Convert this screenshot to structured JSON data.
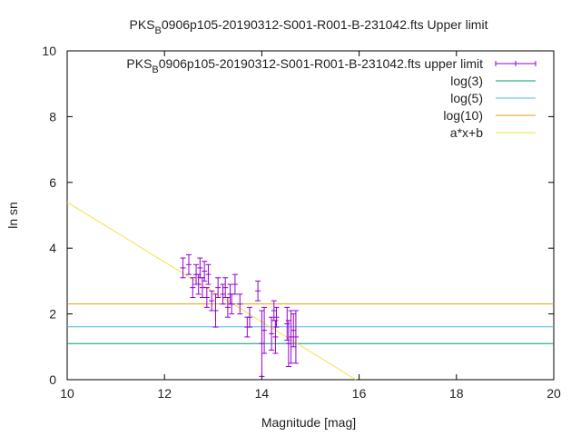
{
  "chart_data": {
    "type": "scatter",
    "title": {
      "prefix": "PKS",
      "sub": "B",
      "suffix": "0906p105-20190312-S001-R001-B-231042.fts Upper limit"
    },
    "xlabel": "Magnitude [mag]",
    "ylabel": "ln sn",
    "xlim": [
      10,
      20
    ],
    "ylim": [
      0,
      10
    ],
    "x_ticks": [
      10,
      12,
      14,
      16,
      18,
      20
    ],
    "y_ticks": [
      0,
      2,
      4,
      6,
      8,
      10
    ],
    "grid": false,
    "legend_position": "top-right",
    "series": [
      {
        "name": {
          "prefix": "PKS",
          "sub": "B",
          "suffix": "0906p105-20190312-S001-R001-B-231042.fts upper limit"
        },
        "kind": "errorbars",
        "color": "#9400d3",
        "points": [
          {
            "x": 12.38,
            "y": 3.4,
            "err": 0.3
          },
          {
            "x": 12.5,
            "y": 3.5,
            "err": 0.3
          },
          {
            "x": 12.58,
            "y": 2.8,
            "err": 0.3
          },
          {
            "x": 12.65,
            "y": 3.2,
            "err": 0.3
          },
          {
            "x": 12.7,
            "y": 2.9,
            "err": 0.3
          },
          {
            "x": 12.73,
            "y": 3.4,
            "err": 0.3
          },
          {
            "x": 12.78,
            "y": 2.8,
            "err": 0.3
          },
          {
            "x": 12.82,
            "y": 3.3,
            "err": 0.3
          },
          {
            "x": 12.87,
            "y": 2.5,
            "err": 0.3
          },
          {
            "x": 12.9,
            "y": 3.2,
            "err": 0.3
          },
          {
            "x": 12.97,
            "y": 2.4,
            "err": 0.3
          },
          {
            "x": 13.05,
            "y": 2.1,
            "err": 0.5
          },
          {
            "x": 13.1,
            "y": 2.8,
            "err": 0.3
          },
          {
            "x": 13.2,
            "y": 2.6,
            "err": 0.3
          },
          {
            "x": 13.25,
            "y": 2.8,
            "err": 0.3
          },
          {
            "x": 13.3,
            "y": 2.2,
            "err": 0.3
          },
          {
            "x": 13.35,
            "y": 2.6,
            "err": 0.3
          },
          {
            "x": 13.38,
            "y": 2.3,
            "err": 0.3
          },
          {
            "x": 13.45,
            "y": 2.9,
            "err": 0.3
          },
          {
            "x": 13.55,
            "y": 2.3,
            "err": 0.3
          },
          {
            "x": 13.7,
            "y": 1.6,
            "err": 0.3
          },
          {
            "x": 13.75,
            "y": 1.9,
            "err": 0.3
          },
          {
            "x": 13.92,
            "y": 2.7,
            "err": 0.3
          },
          {
            "x": 14.0,
            "y": 1.1,
            "err": 1.0
          },
          {
            "x": 14.05,
            "y": 1.5,
            "err": 0.7
          },
          {
            "x": 14.2,
            "y": 1.4,
            "err": 0.5
          },
          {
            "x": 14.25,
            "y": 2.1,
            "err": 0.3
          },
          {
            "x": 14.28,
            "y": 1.3,
            "err": 0.5
          },
          {
            "x": 14.3,
            "y": 1.9,
            "err": 0.3
          },
          {
            "x": 14.52,
            "y": 1.7,
            "err": 0.5
          },
          {
            "x": 14.55,
            "y": 1.1,
            "err": 0.7
          },
          {
            "x": 14.6,
            "y": 1.3,
            "err": 0.8
          },
          {
            "x": 14.65,
            "y": 1.5,
            "err": 0.5
          },
          {
            "x": 14.7,
            "y": 1.3,
            "err": 0.8
          }
        ]
      },
      {
        "name": "log(3)",
        "kind": "hline",
        "value": 1.0986,
        "color": "#009e73"
      },
      {
        "name": "log(5)",
        "kind": "hline",
        "value": 1.6094,
        "color": "#56b4e9"
      },
      {
        "name": "log(10)",
        "kind": "hline",
        "value": 2.3026,
        "color": "#e69f00"
      },
      {
        "name": "a*x+b",
        "kind": "fitline",
        "slope": -0.91,
        "intercept": 14.5,
        "color": "#f0e442"
      }
    ]
  }
}
